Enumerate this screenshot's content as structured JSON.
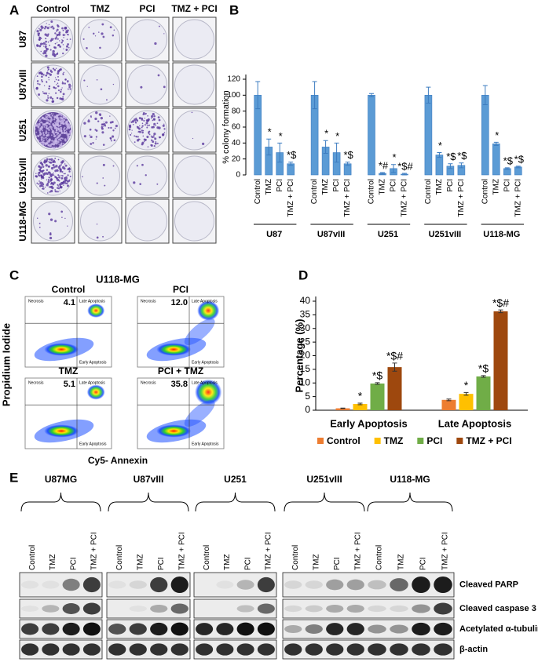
{
  "panels": {
    "a": "A",
    "b": "B",
    "c": "C",
    "d": "D",
    "e": "E"
  },
  "colony": {
    "treatments": [
      "Control",
      "TMZ",
      "PCI",
      "TMZ + PCI"
    ],
    "cell_lines": [
      "U87",
      "U87vIII",
      "U251",
      "U251vIII",
      "U118-MG"
    ]
  },
  "chart_data": [
    {
      "type": "bar",
      "y_label": "% colony formation",
      "categories": [
        "U87",
        "U87vIII",
        "U251",
        "U251vIII",
        "U118-MG"
      ],
      "series": [
        {
          "name": "Control",
          "color": "#5B9BD5",
          "values": [
            100,
            100,
            100,
            100,
            100
          ],
          "errors": [
            17,
            17,
            2,
            10,
            12
          ]
        },
        {
          "name": "TMZ",
          "color": "#5B9BD5",
          "values": [
            35,
            35,
            2,
            25,
            39
          ],
          "errors": [
            10,
            8,
            1,
            3,
            2
          ],
          "marks": [
            "*",
            "*",
            "*#",
            "*",
            "*"
          ]
        },
        {
          "name": "PCI",
          "color": "#5B9BD5",
          "values": [
            28,
            28,
            8,
            11,
            8
          ],
          "errors": [
            12,
            12,
            5,
            3,
            1
          ],
          "marks": [
            "*",
            "*",
            "*",
            "*$",
            "*$"
          ]
        },
        {
          "name": "TMZ + PCI",
          "color": "#5B9BD5",
          "values": [
            14,
            14,
            1,
            12,
            10
          ],
          "errors": [
            2,
            2,
            1,
            3,
            1
          ],
          "marks": [
            "*$",
            "*$",
            "*$#",
            "*$",
            "*$"
          ]
        }
      ],
      "ylim": [
        0,
        120
      ],
      "yticks": [
        0,
        20,
        40,
        60,
        80,
        100,
        120
      ]
    },
    {
      "type": "bar",
      "y_label": "Percentage (%)",
      "categories": [
        "Early Apoptosis",
        "Late Apoptosis"
      ],
      "series": [
        {
          "name": "Control",
          "color": "#ED7D31",
          "values": [
            0.7,
            3.8
          ],
          "errors": [
            0.1,
            0.3
          ]
        },
        {
          "name": "TMZ",
          "color": "#FFC000",
          "values": [
            2.3,
            6.0
          ],
          "errors": [
            0.3,
            0.5
          ],
          "marks": [
            "*",
            "*"
          ]
        },
        {
          "name": "PCI",
          "color": "#70AD47",
          "values": [
            9.8,
            12.4
          ],
          "errors": [
            0.3,
            0.3
          ],
          "marks": [
            "*$",
            "*$"
          ]
        },
        {
          "name": "TMZ + PCI",
          "color": "#9E480E",
          "values": [
            15.8,
            36.3
          ],
          "errors": [
            1.5,
            0.5
          ],
          "marks": [
            "*$#",
            "*$#"
          ]
        }
      ],
      "ylim": [
        0,
        40
      ],
      "yticks": [
        0,
        5,
        10,
        15,
        20,
        25,
        30,
        35,
        40
      ],
      "legend": "bottom"
    }
  ],
  "flow": {
    "title": "U118-MG",
    "y_label": "Propidium Iodide",
    "x_label": "Cy5- Annexin",
    "quadrants": [
      "Necrosis",
      "Late Apoptosis",
      "Early Apoptosis"
    ],
    "plots": [
      {
        "label": "Control",
        "percent": "4.1"
      },
      {
        "label": "PCI",
        "percent": "12.0"
      },
      {
        "label": "TMZ",
        "percent": "5.1"
      },
      {
        "label": "PCI + TMZ",
        "percent": "35.8"
      }
    ]
  },
  "blot": {
    "groups": [
      "U87MG",
      "U87vIII",
      "U251",
      "U251vIII",
      "U118-MG"
    ],
    "lanes": [
      "Control",
      "TMZ",
      "PCI",
      "TMZ + PCI"
    ],
    "proteins": [
      "Cleaved PARP",
      "Cleaved caspase 3",
      "Acetylated α-tubulin",
      "β-actin"
    ]
  }
}
